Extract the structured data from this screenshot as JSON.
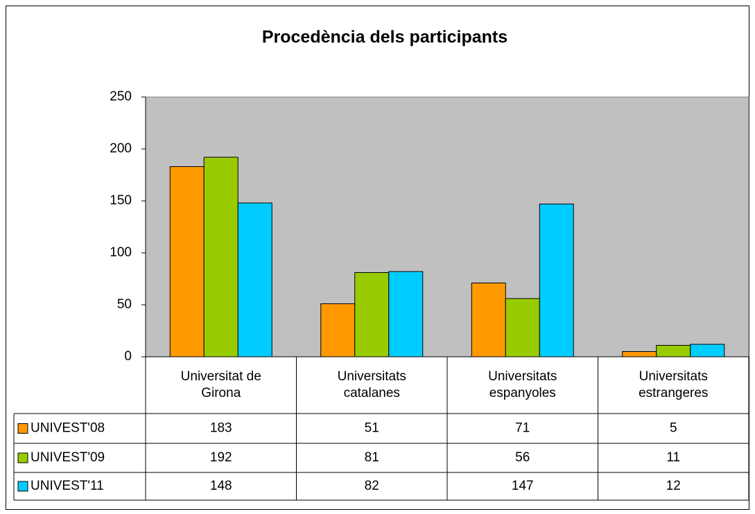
{
  "chart_data": {
    "type": "bar",
    "title": "Procedència dels participants",
    "categories": [
      "Universitat de Girona",
      "Universitats catalanes",
      "Universitats espanyoles",
      "Universitats estrangeres"
    ],
    "series": [
      {
        "name": "UNIVEST'08",
        "color": "#FF9900",
        "values": [
          183,
          51,
          71,
          5
        ]
      },
      {
        "name": "UNIVEST'09",
        "color": "#99CC00",
        "values": [
          192,
          81,
          56,
          11
        ]
      },
      {
        "name": "UNIVEST'11",
        "color": "#00CCFF",
        "values": [
          148,
          82,
          147,
          12
        ]
      }
    ],
    "ylim": [
      0,
      250
    ],
    "yticks": [
      0,
      50,
      100,
      150,
      200,
      250
    ],
    "plot_background": "#C0C0C0"
  }
}
